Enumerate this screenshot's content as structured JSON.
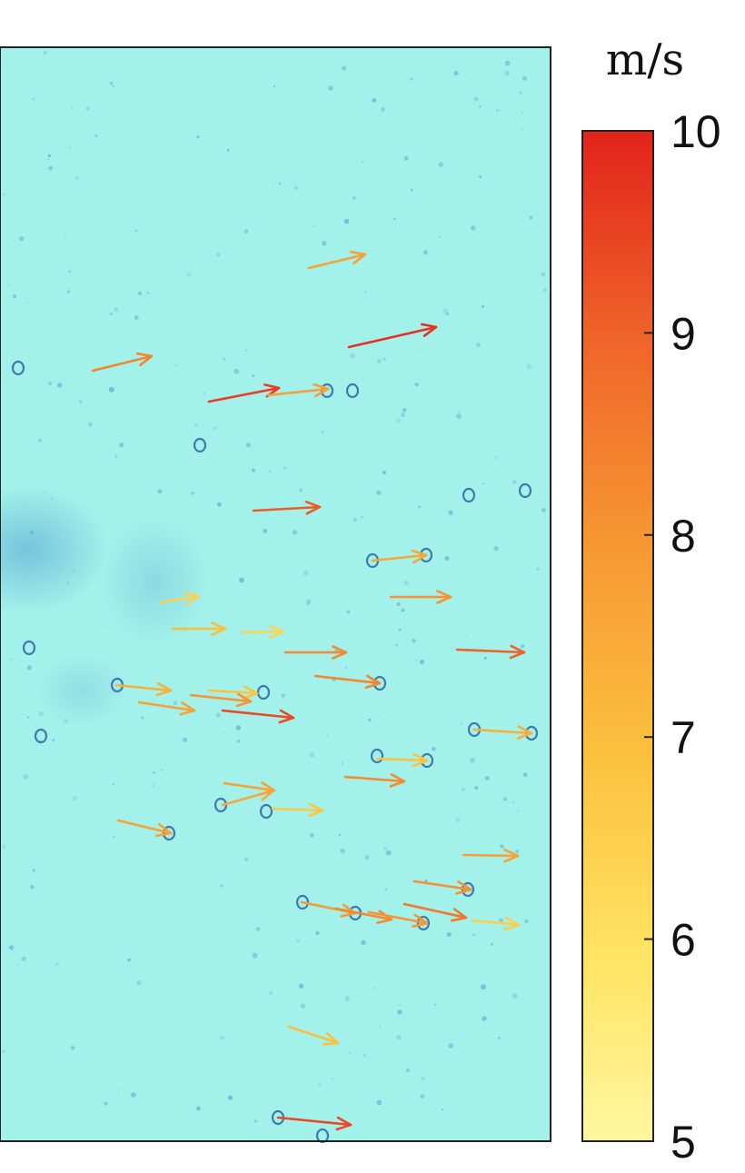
{
  "image": {
    "description_free": true,
    "background_color": "#9ff2ea",
    "speckle_color": "#3a7fc0",
    "frame_color": "#222222"
  },
  "colorbar": {
    "unit": "m/s",
    "min": 5,
    "max": 10,
    "ticks": [
      "10",
      "9",
      "8",
      "7",
      "6",
      "5"
    ],
    "tick_values": [
      10,
      9,
      8,
      7,
      6,
      5
    ],
    "colors": [
      "#fff27a",
      "#ffdb55",
      "#fbbd3c",
      "#f79a33",
      "#f2712a",
      "#ea3e22",
      "#e2231b"
    ]
  },
  "vectors": [
    {
      "x1": 340,
      "y1": 295,
      "x2": 402,
      "y2": 280,
      "speed": 7.3
    },
    {
      "x1": 384,
      "y1": 382,
      "x2": 480,
      "y2": 360,
      "speed": 9.6
    },
    {
      "x1": 102,
      "y1": 408,
      "x2": 167,
      "y2": 392,
      "speed": 7.9
    },
    {
      "x1": 230,
      "y1": 442,
      "x2": 307,
      "y2": 427,
      "speed": 9.2
    },
    {
      "x1": 295,
      "y1": 435,
      "x2": 361,
      "y2": 428,
      "speed": 7.4
    },
    {
      "x1": 279,
      "y1": 562,
      "x2": 352,
      "y2": 558,
      "speed": 8.7
    },
    {
      "x1": 410,
      "y1": 617,
      "x2": 469,
      "y2": 611,
      "speed": 7.2
    },
    {
      "x1": 430,
      "y1": 657,
      "x2": 496,
      "y2": 657,
      "speed": 7.6
    },
    {
      "x1": 177,
      "y1": 663,
      "x2": 219,
      "y2": 656,
      "speed": 6.1
    },
    {
      "x1": 190,
      "y1": 692,
      "x2": 248,
      "y2": 692,
      "speed": 6.6
    },
    {
      "x1": 266,
      "y1": 696,
      "x2": 312,
      "y2": 695,
      "speed": 6.0
    },
    {
      "x1": 314,
      "y1": 718,
      "x2": 381,
      "y2": 718,
      "speed": 7.8
    },
    {
      "x1": 503,
      "y1": 715,
      "x2": 577,
      "y2": 718,
      "speed": 8.6
    },
    {
      "x1": 347,
      "y1": 744,
      "x2": 418,
      "y2": 752,
      "speed": 7.9
    },
    {
      "x1": 128,
      "y1": 754,
      "x2": 188,
      "y2": 760,
      "speed": 7.0
    },
    {
      "x1": 230,
      "y1": 760,
      "x2": 283,
      "y2": 763,
      "speed": 6.5
    },
    {
      "x1": 210,
      "y1": 765,
      "x2": 276,
      "y2": 772,
      "speed": 7.6
    },
    {
      "x1": 153,
      "y1": 773,
      "x2": 214,
      "y2": 782,
      "speed": 7.3
    },
    {
      "x1": 245,
      "y1": 782,
      "x2": 323,
      "y2": 790,
      "speed": 9.0
    },
    {
      "x1": 522,
      "y1": 803,
      "x2": 585,
      "y2": 807,
      "speed": 7.0
    },
    {
      "x1": 415,
      "y1": 835,
      "x2": 470,
      "y2": 837,
      "speed": 6.5
    },
    {
      "x1": 380,
      "y1": 855,
      "x2": 445,
      "y2": 860,
      "speed": 7.8
    },
    {
      "x1": 247,
      "y1": 862,
      "x2": 302,
      "y2": 870,
      "speed": 7.3
    },
    {
      "x1": 245,
      "y1": 886,
      "x2": 301,
      "y2": 870,
      "speed": 7.2
    },
    {
      "x1": 300,
      "y1": 890,
      "x2": 355,
      "y2": 892,
      "speed": 6.4
    },
    {
      "x1": 130,
      "y1": 903,
      "x2": 188,
      "y2": 917,
      "speed": 7.3
    },
    {
      "x1": 510,
      "y1": 941,
      "x2": 570,
      "y2": 942,
      "speed": 7.3
    },
    {
      "x1": 456,
      "y1": 970,
      "x2": 518,
      "y2": 979,
      "speed": 7.7
    },
    {
      "x1": 332,
      "y1": 993,
      "x2": 391,
      "y2": 1005,
      "speed": 7.5
    },
    {
      "x1": 370,
      "y1": 1000,
      "x2": 431,
      "y2": 1012,
      "speed": 7.8
    },
    {
      "x1": 406,
      "y1": 1004,
      "x2": 470,
      "y2": 1016,
      "speed": 7.6
    },
    {
      "x1": 445,
      "y1": 995,
      "x2": 513,
      "y2": 1010,
      "speed": 8.2
    },
    {
      "x1": 520,
      "y1": 1013,
      "x2": 571,
      "y2": 1018,
      "speed": 6.2
    },
    {
      "x1": 318,
      "y1": 1130,
      "x2": 372,
      "y2": 1148,
      "speed": 6.6
    },
    {
      "x1": 306,
      "y1": 1230,
      "x2": 386,
      "y2": 1238,
      "speed": 9.0
    }
  ]
}
